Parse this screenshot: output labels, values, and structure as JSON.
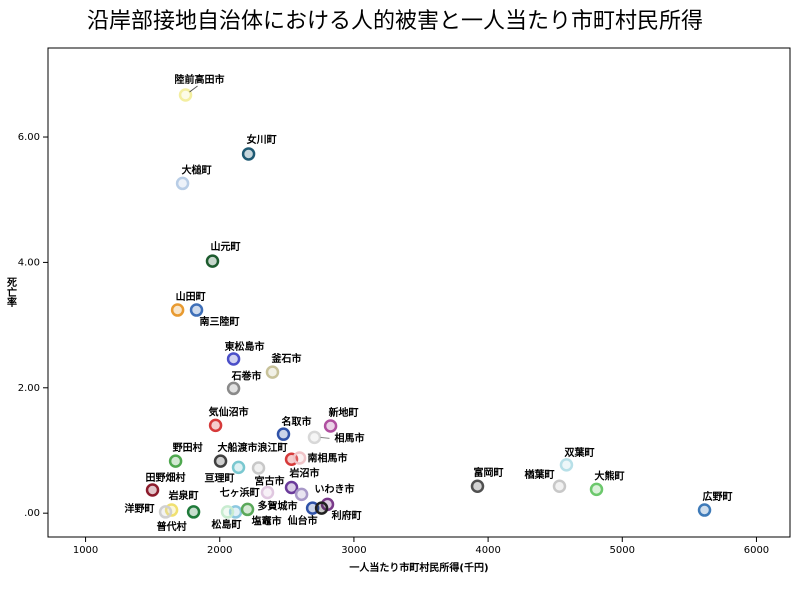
{
  "chart_data": {
    "type": "scatter",
    "title": "沿岸部接地自治体における人的被害と一人当たり市町村民所得",
    "x_label": "一人当たり市町村民所得(千円)",
    "y_label": "死亡率",
    "xlim": [
      720,
      6250
    ],
    "ylim": [
      -0.38,
      7.42
    ],
    "xticks": [
      1000,
      2000,
      3000,
      4000,
      5000,
      6000
    ],
    "yticks": [
      {
        "value": 0,
        "label": ".00"
      },
      {
        "value": 2,
        "label": "2.00"
      },
      {
        "value": 4,
        "label": "4.00"
      },
      {
        "value": 6,
        "label": "6.00"
      }
    ],
    "grid": false,
    "point_labels": [
      "陸前高田市",
      "女川町",
      "大槌町",
      "山元町",
      "山田町",
      "南三陸町",
      "東松島市",
      "釜石市",
      "石巻市",
      "気仙沼市",
      "名取市",
      "新地町",
      "相馬市",
      "野田村",
      "大船渡市",
      "浪江町",
      "南相馬市",
      null,
      "亘理町",
      "田野畑村",
      "岩泉町",
      "洋野町",
      "普代村",
      "七ヶ浜町",
      "松島町",
      "多賀城市",
      "宮古市",
      "岩沼市",
      "塩竈市",
      "仙台市",
      "いわき市",
      "利府町",
      "富岡町",
      "楢葉町",
      "双葉町",
      "大熊町",
      "広野町"
    ],
    "x": [
      1745,
      2215,
      1723,
      1946,
      1686,
      1827,
      2103,
      2393,
      2103,
      1969,
      2475,
      2826,
      2706,
      1671,
      2006,
      2289,
      2535,
      2595,
      2140,
      1499,
      1641,
      1596,
      1805,
      2118,
      2058,
      2207,
      2356,
      2535,
      2610,
      2692,
      2803,
      2759,
      3921,
      4532,
      4584,
      4808,
      5613
    ],
    "values": [
      6.67,
      5.73,
      5.26,
      4.02,
      3.24,
      3.24,
      2.46,
      2.25,
      1.99,
      1.4,
      1.26,
      1.39,
      1.21,
      0.83,
      0.83,
      0.72,
      0.86,
      0.88,
      0.73,
      0.37,
      0.05,
      0.02,
      0.02,
      0.02,
      0.02,
      0.06,
      0.33,
      0.41,
      0.3,
      0.08,
      0.14,
      0.08,
      0.43,
      0.43,
      0.77,
      0.38,
      0.05
    ],
    "colors": [
      "#f3eea0",
      "#1f5a73",
      "#b8cde6",
      "#1d5b2e",
      "#e89a30",
      "#3e6fb8",
      "#4b4fc8",
      "#c8c29a",
      "#8a8a8a",
      "#d63a3a",
      "#2f52a8",
      "#b04fa0",
      "#d8d8d8",
      "#4fa84f",
      "#404040",
      "#c8c8c8",
      "#d63a3a",
      "#f0c4c8",
      "#7ac8d0",
      "#8c1c2c",
      "#f0e070",
      "#d0d0d0",
      "#1f7a3a",
      "#8cc8e0",
      "#c8ecd0",
      "#5aa85a",
      "#e0c8e0",
      "#6a3a9a",
      "#a898c8",
      "#2f52a8",
      "#7a3a8a",
      "#202020",
      "#505050",
      "#c8c8c8",
      "#b8e0e8",
      "#6cc86c",
      "#3e7ab8"
    ]
  }
}
